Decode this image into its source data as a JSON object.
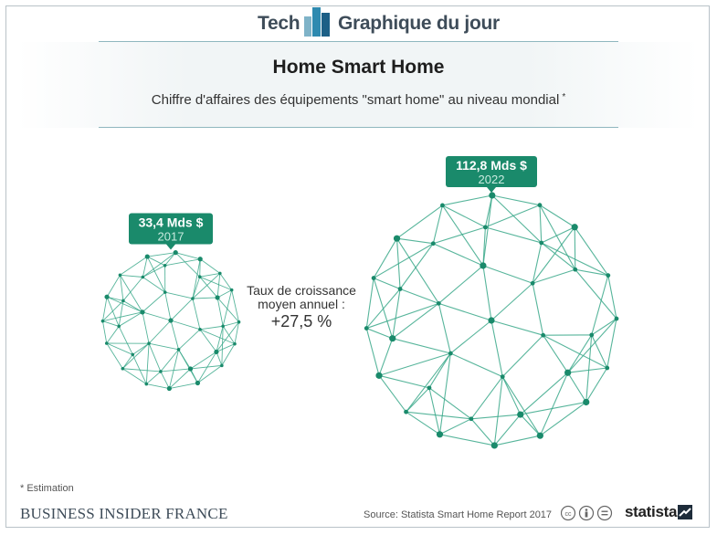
{
  "header": {
    "left_word": "Tech",
    "right_word": "Graphique du jour",
    "title": "Home Smart Home",
    "subtitle": "Chiffre d'affaires des équipements \"smart home\" au niveau mondial",
    "subtitle_mark": "*"
  },
  "chart_data": {
    "type": "bubble",
    "title": "Home Smart Home",
    "subtitle": "Chiffre d'affaires des équipements \"smart home\" au niveau mondial *",
    "unit": "Mds $",
    "categories": [
      "2017",
      "2022"
    ],
    "values": [
      33.4,
      112.8
    ],
    "value_labels": [
      "33,4 Mds $",
      "112,8 Mds $"
    ],
    "annotation": {
      "text": "Taux de croissance moyen annuel :",
      "value_label": "+27,5 %",
      "value": 27.5
    }
  },
  "colors": {
    "accent": "#1a8a6b",
    "sphere_line": "#3aa88a",
    "sphere_node": "#1a8a6b",
    "badge_text": "#ffffff",
    "badge_year": "#c8eadf"
  },
  "footer": {
    "note": "* Estimation",
    "brand": "BUSINESS INSIDER FRANCE",
    "source": "Source: Statista Smart Home Report 2017",
    "publisher": "statista",
    "license_icons": [
      "cc-icon",
      "by-icon",
      "nd-icon"
    ]
  }
}
